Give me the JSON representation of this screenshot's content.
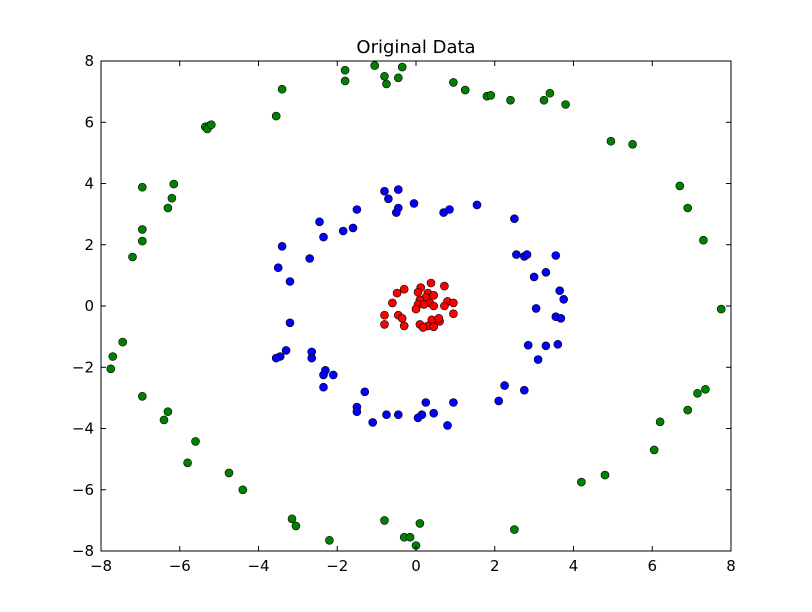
{
  "chart_data": {
    "type": "scatter",
    "title": "Original Data",
    "xlabel": "",
    "ylabel": "",
    "xlim": [
      -8,
      8
    ],
    "ylim": [
      -8,
      8
    ],
    "xticks": [
      -8,
      -6,
      -4,
      -2,
      0,
      2,
      4,
      6,
      8
    ],
    "yticks": [
      -8,
      -6,
      -4,
      -2,
      0,
      2,
      4,
      6,
      8
    ],
    "grid": false,
    "legend": "none",
    "series": [
      {
        "color": "#ff0000",
        "points": [
          [
            0.12,
            0.6
          ],
          [
            0.38,
            0.75
          ],
          [
            0.72,
            0.65
          ],
          [
            -0.3,
            0.55
          ],
          [
            -0.48,
            0.42
          ],
          [
            0.05,
            0.45
          ],
          [
            0.3,
            0.42
          ],
          [
            0.45,
            0.35
          ],
          [
            0.25,
            0.28
          ],
          [
            0.1,
            0.2
          ],
          [
            -0.6,
            0.1
          ],
          [
            0.05,
            0.05
          ],
          [
            0.35,
            0.1
          ],
          [
            0.8,
            0.15
          ],
          [
            0.95,
            0.1
          ],
          [
            0.72,
            0.0
          ],
          [
            0.45,
            0.0
          ],
          [
            0.2,
            0.05
          ],
          [
            0.0,
            -0.1
          ],
          [
            -0.8,
            -0.3
          ],
          [
            -0.45,
            -0.3
          ],
          [
            -0.35,
            -0.4
          ],
          [
            0.4,
            -0.45
          ],
          [
            0.6,
            -0.5
          ],
          [
            0.95,
            -0.25
          ],
          [
            0.1,
            -0.6
          ],
          [
            0.3,
            -0.65
          ],
          [
            0.45,
            -0.68
          ],
          [
            -0.8,
            -0.6
          ],
          [
            -0.3,
            -0.65
          ],
          [
            0.58,
            -0.4
          ],
          [
            0.18,
            -0.7
          ]
        ]
      },
      {
        "color": "#0000ff",
        "points": [
          [
            -0.8,
            3.75
          ],
          [
            -0.45,
            3.8
          ],
          [
            -0.05,
            3.35
          ],
          [
            -0.7,
            3.5
          ],
          [
            -0.45,
            3.2
          ],
          [
            -0.5,
            3.05
          ],
          [
            0.7,
            3.05
          ],
          [
            0.85,
            3.15
          ],
          [
            1.55,
            3.3
          ],
          [
            2.5,
            2.85
          ],
          [
            -1.5,
            3.15
          ],
          [
            -2.45,
            2.75
          ],
          [
            -1.6,
            2.55
          ],
          [
            -1.85,
            2.45
          ],
          [
            -2.35,
            2.25
          ],
          [
            -3.4,
            1.95
          ],
          [
            -2.7,
            1.55
          ],
          [
            -3.5,
            1.25
          ],
          [
            -3.2,
            0.8
          ],
          [
            2.55,
            1.68
          ],
          [
            2.75,
            1.62
          ],
          [
            2.82,
            1.68
          ],
          [
            3.55,
            1.65
          ],
          [
            3.3,
            1.1
          ],
          [
            3,
            0.95
          ],
          [
            3.65,
            0.5
          ],
          [
            3.75,
            0.22
          ],
          [
            3.05,
            -0.08
          ],
          [
            3.55,
            -0.35
          ],
          [
            3.68,
            -0.4
          ],
          [
            -3.2,
            -0.55
          ],
          [
            -3.3,
            -1.45
          ],
          [
            -3.45,
            -1.65
          ],
          [
            -3.55,
            -1.7
          ],
          [
            -2.65,
            -1.5
          ],
          [
            -2.65,
            -1.7
          ],
          [
            2.85,
            -1.28
          ],
          [
            3.3,
            -1.3
          ],
          [
            3.6,
            -1.25
          ],
          [
            3.1,
            -1.75
          ],
          [
            -2.3,
            -2.1
          ],
          [
            -2.35,
            -2.25
          ],
          [
            -2.1,
            -2.25
          ],
          [
            -2.35,
            -2.65
          ],
          [
            2.25,
            -2.6
          ],
          [
            2.75,
            -2.75
          ],
          [
            -1.3,
            -2.8
          ],
          [
            -1.5,
            -3.3
          ],
          [
            -1.5,
            -3.45
          ],
          [
            0.25,
            -3.15
          ],
          [
            0.95,
            -3.15
          ],
          [
            2.1,
            -3.1
          ],
          [
            -0.75,
            -3.55
          ],
          [
            -0.45,
            -3.55
          ],
          [
            0.15,
            -3.55
          ],
          [
            0.45,
            -3.5
          ],
          [
            0.05,
            -3.65
          ],
          [
            -1.1,
            -3.8
          ],
          [
            0.8,
            -3.9
          ]
        ]
      },
      {
        "color": "#008000",
        "points": [
          [
            -1.8,
            7.7
          ],
          [
            -1.05,
            7.85
          ],
          [
            -0.35,
            7.8
          ],
          [
            -0.8,
            7.5
          ],
          [
            -0.45,
            7.45
          ],
          [
            -0.75,
            7.25
          ],
          [
            -1.8,
            7.35
          ],
          [
            0.95,
            7.3
          ],
          [
            1.25,
            7.05
          ],
          [
            1.8,
            6.85
          ],
          [
            1.9,
            6.88
          ],
          [
            2.4,
            6.72
          ],
          [
            3.4,
            6.95
          ],
          [
            3.25,
            6.72
          ],
          [
            3.8,
            6.58
          ],
          [
            -3.4,
            7.08
          ],
          [
            -3.55,
            6.2
          ],
          [
            -5.35,
            5.85
          ],
          [
            -5.25,
            5.88
          ],
          [
            -5.3,
            5.78
          ],
          [
            -5.2,
            5.92
          ],
          [
            4.95,
            5.38
          ],
          [
            5.5,
            5.28
          ],
          [
            6.7,
            3.92
          ],
          [
            6.9,
            3.2
          ],
          [
            7.3,
            2.15
          ],
          [
            7.75,
            -0.1
          ],
          [
            -6.15,
            3.98
          ],
          [
            -6.2,
            3.52
          ],
          [
            -6.3,
            3.2
          ],
          [
            -6.95,
            3.88
          ],
          [
            -6.95,
            2.5
          ],
          [
            -6.95,
            2.12
          ],
          [
            -7.2,
            1.6
          ],
          [
            -7.45,
            -1.18
          ],
          [
            -7.7,
            -1.65
          ],
          [
            -7.75,
            -2.05
          ],
          [
            -6.95,
            -2.95
          ],
          [
            -6.3,
            -3.45
          ],
          [
            -6.4,
            -3.72
          ],
          [
            -5.6,
            -4.42
          ],
          [
            -5.8,
            -5.12
          ],
          [
            -4.75,
            -5.45
          ],
          [
            -4.4,
            -6.0
          ],
          [
            7.35,
            -2.72
          ],
          [
            7.15,
            -2.85
          ],
          [
            6.9,
            -3.4
          ],
          [
            6.2,
            -3.78
          ],
          [
            6.05,
            -4.7
          ],
          [
            4.8,
            -5.52
          ],
          [
            4.2,
            -5.75
          ],
          [
            -3.15,
            -6.95
          ],
          [
            -3.05,
            -7.18
          ],
          [
            -2.2,
            -7.65
          ],
          [
            -0.8,
            -7.0
          ],
          [
            0.1,
            -7.1
          ],
          [
            2.5,
            -7.3
          ],
          [
            -0.3,
            -7.55
          ],
          [
            -0.15,
            -7.55
          ],
          [
            0.0,
            -7.82
          ]
        ]
      }
    ]
  }
}
